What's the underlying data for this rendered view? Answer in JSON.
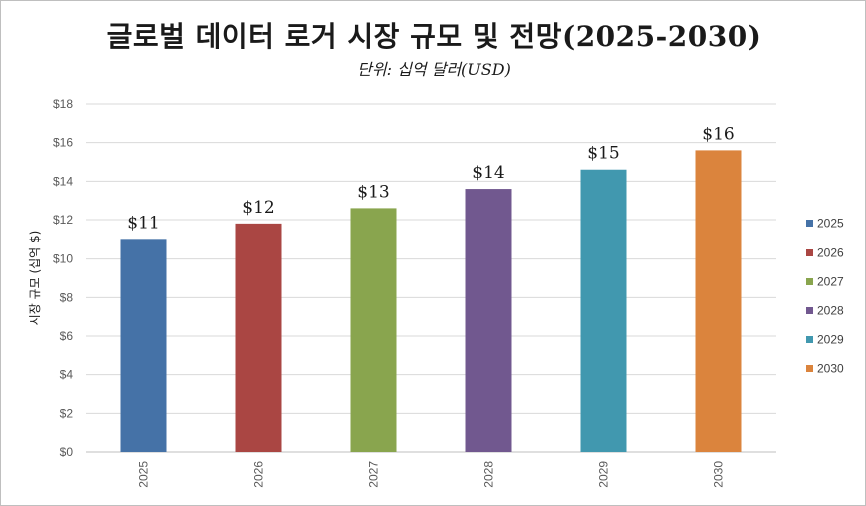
{
  "chart_data": {
    "type": "bar",
    "title": "글로벌 데이터 로거 시장 규모 및 전망(2025-2030)",
    "subtitle": "단위: 십억 달러(USD)",
    "ylabel": "시장 규모 (십억 $)",
    "xlabel": "",
    "categories": [
      "2025",
      "2026",
      "2027",
      "2028",
      "2029",
      "2030"
    ],
    "values": [
      11.0,
      11.8,
      12.6,
      13.6,
      14.6,
      15.6
    ],
    "data_labels": [
      "$11",
      "$12",
      "$13",
      "$14",
      "$15",
      "$16"
    ],
    "ylim": [
      0,
      18
    ],
    "yticks": [
      0,
      2,
      4,
      6,
      8,
      10,
      12,
      14,
      16,
      18
    ],
    "ytick_labels": [
      "$0",
      "$2",
      "$4",
      "$6",
      "$8",
      "$10",
      "$12",
      "$14",
      "$16",
      "$18"
    ],
    "colors": [
      "#4572a7",
      "#aa4643",
      "#89a54e",
      "#71588f",
      "#4198af",
      "#db843d"
    ],
    "legend": [
      "2025",
      "2026",
      "2027",
      "2028",
      "2029",
      "2030"
    ],
    "legend_position": "right",
    "grid": true
  }
}
